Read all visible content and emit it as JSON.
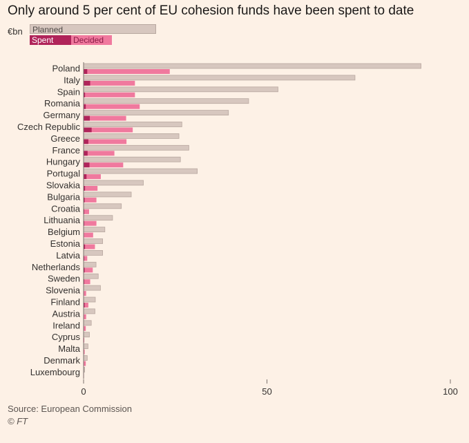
{
  "title": "Only around 5 per cent of EU cohesion funds have been spent to date",
  "source": "Source: European Commission",
  "credit": "© FT",
  "colors": {
    "planned": "#d7c7bf",
    "planned_stroke": "#b8a8a0",
    "decided": "#f0799e",
    "spent": "#b0245a",
    "background": "#fdf1e6"
  },
  "chart_data": {
    "type": "bar",
    "orientation": "horizontal",
    "unit": "€bn",
    "legend": [
      "Planned",
      "Spent",
      "Decided"
    ],
    "legend_placement": "top-left",
    "xlim": [
      0,
      100
    ],
    "xticks": [
      "0",
      "50",
      "100"
    ],
    "grid": false,
    "categories": [
      "Poland",
      "Italy",
      "Spain",
      "Romania",
      "Germany",
      "Czech Republic",
      "Greece",
      "France",
      "Hungary",
      "Portugal",
      "Slovakia",
      "Bulgaria",
      "Croatia",
      "Lithuania",
      "Belgium",
      "Estonia",
      "Latvia",
      "Netherlands",
      "Sweden",
      "Slovenia",
      "Finland",
      "Austria",
      "Ireland",
      "Cyprus",
      "Malta",
      "Denmark",
      "Luxembourg"
    ],
    "series": [
      {
        "name": "Planned",
        "values": [
          92,
          74,
          53,
          45,
          39.5,
          26.8,
          26,
          28.7,
          26.4,
          31,
          16.3,
          13,
          10.3,
          7.9,
          5.8,
          5.2,
          5.2,
          3.4,
          4,
          4.6,
          3.2,
          3.1,
          2.1,
          1.6,
          1.2,
          1,
          0.3
        ]
      },
      {
        "name": "Decided",
        "values": [
          23.5,
          14,
          14,
          15.3,
          11.6,
          13.4,
          11.7,
          8.4,
          10.8,
          4.7,
          3.8,
          3.5,
          1.5,
          3.5,
          2.6,
          3.1,
          1,
          2.5,
          1.8,
          0.7,
          1.3,
          0.7,
          0.6,
          0.2,
          0.3,
          0.6,
          0.1
        ]
      },
      {
        "name": "Spent",
        "values": [
          1,
          1.8,
          0.4,
          0.6,
          1.7,
          2.2,
          1.3,
          1.1,
          1.6,
          0.8,
          0.4,
          0.3,
          0.2,
          0.2,
          0.1,
          0.4,
          0.2,
          0.3,
          0.2,
          0.1,
          0.3,
          0.1,
          0.1,
          0.1,
          0.1,
          0.1,
          0
        ]
      }
    ]
  }
}
